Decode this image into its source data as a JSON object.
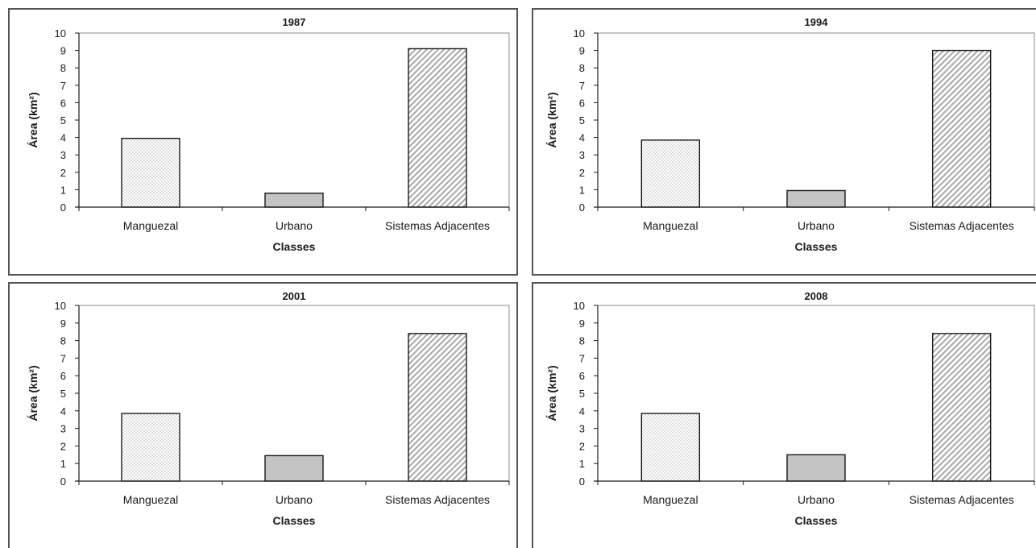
{
  "colors": {
    "urbano_fill": "#c4c4c4",
    "stroke": "#1a1a1a",
    "hatch": "#a8a8a8",
    "dots": "#8a8a8a"
  },
  "chart_data": [
    {
      "type": "bar",
      "title": "1987",
      "xlabel": "Classes",
      "ylabel": "Área (km²)",
      "categories": [
        "Manguezal",
        "Urbano",
        "Sistemas Adjacentes"
      ],
      "values": [
        3.95,
        0.8,
        9.1
      ],
      "patterns": [
        "dots",
        "solid-gray",
        "diagonal-hatch"
      ],
      "ylim": [
        0,
        10
      ],
      "yticks": [
        "0",
        "1",
        "2",
        "3",
        "4",
        "5",
        "6",
        "7",
        "8",
        "9",
        "10"
      ],
      "grid": false,
      "legend": "none"
    },
    {
      "type": "bar",
      "title": "1994",
      "xlabel": "Classes",
      "ylabel": "Área (km²)",
      "categories": [
        "Manguezal",
        "Urbano",
        "Sistemas Adjacentes"
      ],
      "values": [
        3.85,
        0.95,
        9.0
      ],
      "patterns": [
        "dots",
        "solid-gray",
        "diagonal-hatch"
      ],
      "ylim": [
        0,
        10
      ],
      "yticks": [
        "0",
        "1",
        "2",
        "3",
        "4",
        "5",
        "6",
        "7",
        "8",
        "9",
        "10"
      ],
      "grid": false,
      "legend": "none"
    },
    {
      "type": "bar",
      "title": "2001",
      "xlabel": "Classes",
      "ylabel": "Área (km²)",
      "categories": [
        "Manguezal",
        "Urbano",
        "Sistemas Adjacentes"
      ],
      "values": [
        3.85,
        1.45,
        8.4
      ],
      "patterns": [
        "dots",
        "solid-gray",
        "diagonal-hatch"
      ],
      "ylim": [
        0,
        10
      ],
      "yticks": [
        "0",
        "1",
        "2",
        "3",
        "4",
        "5",
        "6",
        "7",
        "8",
        "9",
        "10"
      ],
      "grid": false,
      "legend": "none"
    },
    {
      "type": "bar",
      "title": "2008",
      "xlabel": "Classes",
      "ylabel": "Área (km²)",
      "categories": [
        "Manguezal",
        "Urbano",
        "Sistemas Adjacentes"
      ],
      "values": [
        3.85,
        1.5,
        8.4
      ],
      "patterns": [
        "dots",
        "solid-gray",
        "diagonal-hatch"
      ],
      "ylim": [
        0,
        10
      ],
      "yticks": [
        "0",
        "1",
        "2",
        "3",
        "4",
        "5",
        "6",
        "7",
        "8",
        "9",
        "10"
      ],
      "grid": false,
      "legend": "none"
    }
  ]
}
